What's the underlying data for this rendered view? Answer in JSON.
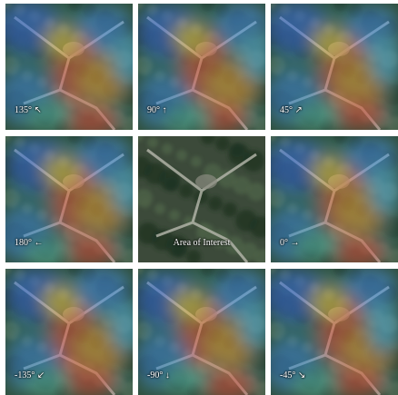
{
  "tiles": [
    {
      "label": "135° ↖"
    },
    {
      "label": "90° ↑"
    },
    {
      "label": "45° ↗"
    },
    {
      "label": "180° ←"
    },
    {
      "label": "Area of Interest"
    },
    {
      "label": "0° →"
    },
    {
      "label": "-135° ↙"
    },
    {
      "label": "-90° ↓"
    },
    {
      "label": "-45° ↘"
    }
  ]
}
